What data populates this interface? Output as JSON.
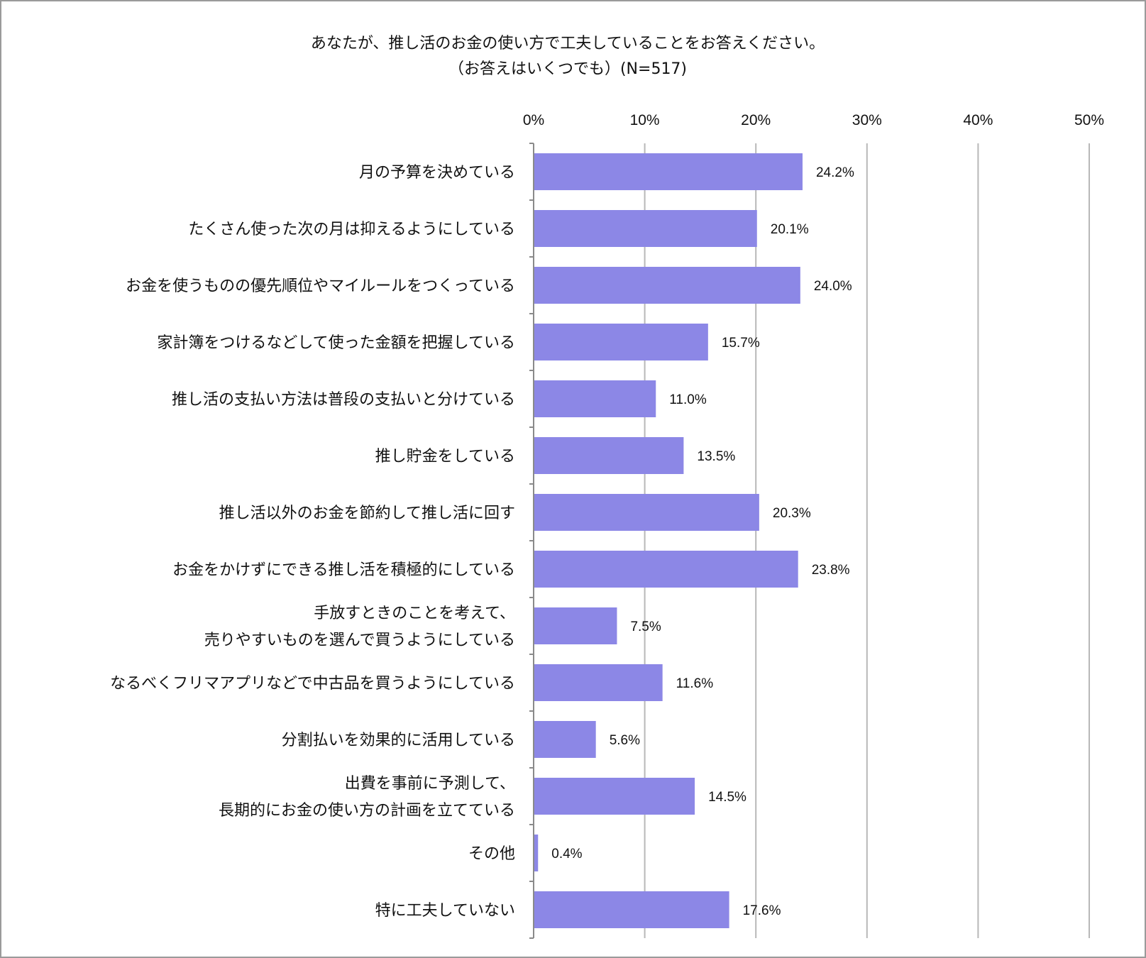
{
  "chart_data": {
    "type": "bar",
    "orientation": "horizontal",
    "title": "あなたが、推し活のお金の使い方で工夫していることをお答えください。",
    "subtitle": "（お答えはいくつでも）(N=517)",
    "xlim": [
      0,
      50
    ],
    "x_ticks": [
      "0%",
      "10%",
      "20%",
      "30%",
      "40%",
      "50%"
    ],
    "grid": "vertical",
    "bar_color": "#8c87e6",
    "categories": [
      [
        "月の予算を決めている"
      ],
      [
        "たくさん使った次の月は抑えるようにしている"
      ],
      [
        "お金を使うものの優先順位やマイルールをつくっている"
      ],
      [
        "家計簿をつけるなどして使った金額を把握している"
      ],
      [
        "推し活の支払い方法は普段の支払いと分けている"
      ],
      [
        "推し貯金をしている"
      ],
      [
        "推し活以外のお金を節約して推し活に回す"
      ],
      [
        "お金をかけずにできる推し活を積極的にしている"
      ],
      [
        "手放すときのことを考えて、",
        "売りやすいものを選んで買うようにしている"
      ],
      [
        "なるべくフリマアプリなどで中古品を買うようにしている"
      ],
      [
        "分割払いを効果的に活用している"
      ],
      [
        "出費を事前に予測して、",
        "長期的にお金の使い方の計画を立てている"
      ],
      [
        "その他"
      ],
      [
        "特に工夫していない"
      ]
    ],
    "values": [
      24.2,
      20.1,
      24.0,
      15.7,
      11.0,
      13.5,
      20.3,
      23.8,
      7.5,
      11.6,
      5.6,
      14.5,
      0.4,
      17.6
    ],
    "value_labels": [
      "24.2%",
      "20.1%",
      "24.0%",
      "15.7%",
      "11.0%",
      "13.5%",
      "20.3%",
      "23.8%",
      "7.5%",
      "11.6%",
      "5.6%",
      "14.5%",
      "0.4%",
      "17.6%"
    ]
  }
}
